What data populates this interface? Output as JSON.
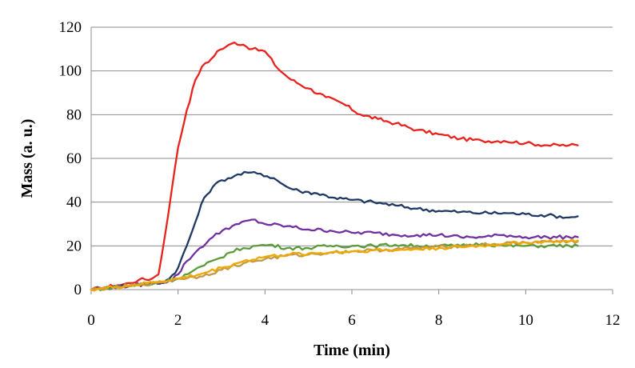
{
  "chart_data": {
    "type": "line",
    "title": "",
    "xlabel": "Time (min)",
    "ylabel": "Mass  (a. u.)",
    "xlim": [
      0,
      12
    ],
    "ylim": [
      0,
      120
    ],
    "xticks": [
      0,
      2,
      4,
      6,
      8,
      10,
      12
    ],
    "yticks": [
      0,
      20,
      40,
      60,
      80,
      100,
      120
    ],
    "grid": "horizontal",
    "legend": "none",
    "series": [
      {
        "color": "#e8221c",
        "points": [
          [
            0,
            0
          ],
          [
            0.3,
            1
          ],
          [
            0.6,
            2
          ],
          [
            0.9,
            3
          ],
          [
            1.1,
            4.5
          ],
          [
            1.4,
            5
          ],
          [
            1.55,
            7
          ],
          [
            1.7,
            25
          ],
          [
            1.85,
            45
          ],
          [
            2.0,
            65
          ],
          [
            2.2,
            82
          ],
          [
            2.4,
            96
          ],
          [
            2.55,
            102
          ],
          [
            2.7,
            104
          ],
          [
            2.9,
            109
          ],
          [
            3.1,
            111
          ],
          [
            3.3,
            113
          ],
          [
            3.5,
            112
          ],
          [
            3.7,
            110
          ],
          [
            4.0,
            109
          ],
          [
            4.3,
            101
          ],
          [
            4.6,
            96
          ],
          [
            5.0,
            92
          ],
          [
            5.4,
            88
          ],
          [
            5.8,
            85
          ],
          [
            6.2,
            80
          ],
          [
            6.6,
            78
          ],
          [
            7.0,
            76
          ],
          [
            7.5,
            73
          ],
          [
            8.0,
            71
          ],
          [
            8.5,
            69
          ],
          [
            9.0,
            68
          ],
          [
            9.5,
            68
          ],
          [
            10.0,
            67
          ],
          [
            10.5,
            66
          ],
          [
            11.0,
            66
          ],
          [
            11.2,
            66
          ]
        ]
      },
      {
        "color": "#1f3864",
        "points": [
          [
            0,
            0
          ],
          [
            0.4,
            1
          ],
          [
            0.8,
            2
          ],
          [
            1.2,
            2.5
          ],
          [
            1.6,
            3
          ],
          [
            1.8,
            5
          ],
          [
            2.0,
            10
          ],
          [
            2.2,
            20
          ],
          [
            2.4,
            31
          ],
          [
            2.6,
            42
          ],
          [
            2.8,
            47
          ],
          [
            3.0,
            50
          ],
          [
            3.3,
            52
          ],
          [
            3.6,
            53.5
          ],
          [
            3.9,
            53
          ],
          [
            4.2,
            51
          ],
          [
            4.5,
            47
          ],
          [
            4.8,
            45
          ],
          [
            5.2,
            44
          ],
          [
            5.6,
            42
          ],
          [
            6.0,
            41
          ],
          [
            6.5,
            40
          ],
          [
            7.0,
            38.5
          ],
          [
            7.5,
            37
          ],
          [
            8.0,
            36
          ],
          [
            8.5,
            35.5
          ],
          [
            9.0,
            35
          ],
          [
            9.5,
            35
          ],
          [
            10.0,
            34.5
          ],
          [
            10.5,
            34
          ],
          [
            11.0,
            33
          ],
          [
            11.2,
            33.5
          ]
        ]
      },
      {
        "color": "#7030a0",
        "points": [
          [
            0,
            0
          ],
          [
            0.5,
            1
          ],
          [
            1.0,
            2
          ],
          [
            1.5,
            3
          ],
          [
            1.8,
            4
          ],
          [
            2.0,
            7
          ],
          [
            2.2,
            13
          ],
          [
            2.5,
            19
          ],
          [
            2.8,
            24
          ],
          [
            3.1,
            28
          ],
          [
            3.4,
            30
          ],
          [
            3.7,
            32
          ],
          [
            4.0,
            30
          ],
          [
            4.5,
            29
          ],
          [
            5.0,
            27.5
          ],
          [
            5.5,
            27
          ],
          [
            6.0,
            26
          ],
          [
            6.5,
            26
          ],
          [
            7.0,
            25
          ],
          [
            7.5,
            25
          ],
          [
            8.0,
            25
          ],
          [
            8.5,
            24
          ],
          [
            9.0,
            24
          ],
          [
            9.5,
            25
          ],
          [
            10.0,
            24
          ],
          [
            10.5,
            24
          ],
          [
            11.0,
            24
          ],
          [
            11.2,
            24
          ]
        ]
      },
      {
        "color": "#5b9b3a",
        "points": [
          [
            0,
            0
          ],
          [
            0.5,
            1
          ],
          [
            1.0,
            2
          ],
          [
            1.5,
            3
          ],
          [
            2.0,
            5
          ],
          [
            2.3,
            8
          ],
          [
            2.6,
            11
          ],
          [
            2.9,
            14
          ],
          [
            3.2,
            17
          ],
          [
            3.5,
            19
          ],
          [
            3.8,
            20
          ],
          [
            4.1,
            20.5
          ],
          [
            4.5,
            19
          ],
          [
            5.0,
            19
          ],
          [
            5.5,
            20
          ],
          [
            6.0,
            20
          ],
          [
            6.5,
            20
          ],
          [
            7.0,
            20.5
          ],
          [
            7.5,
            20
          ],
          [
            8.0,
            20
          ],
          [
            8.5,
            20
          ],
          [
            9.0,
            21
          ],
          [
            9.5,
            20
          ],
          [
            10.0,
            20
          ],
          [
            10.5,
            20
          ],
          [
            11.0,
            20
          ],
          [
            11.2,
            20
          ]
        ]
      },
      {
        "color": "#c09a4a",
        "points": [
          [
            0,
            0
          ],
          [
            0.5,
            1
          ],
          [
            1.0,
            2
          ],
          [
            1.5,
            3
          ],
          [
            2.0,
            5
          ],
          [
            2.5,
            6
          ],
          [
            3.0,
            9
          ],
          [
            3.5,
            12
          ],
          [
            4.0,
            14
          ],
          [
            4.5,
            15.5
          ],
          [
            5.0,
            16
          ],
          [
            5.5,
            17
          ],
          [
            6.0,
            17.5
          ],
          [
            6.5,
            18
          ],
          [
            7.0,
            18.5
          ],
          [
            7.5,
            19
          ],
          [
            8.0,
            19.5
          ],
          [
            8.5,
            20
          ],
          [
            9.0,
            20.5
          ],
          [
            9.5,
            21
          ],
          [
            10.0,
            21.5
          ],
          [
            10.5,
            22
          ],
          [
            11.0,
            22
          ],
          [
            11.2,
            22
          ]
        ]
      },
      {
        "color": "#f0a800",
        "points": [
          [
            0,
            0
          ],
          [
            0.5,
            1
          ],
          [
            1.0,
            2
          ],
          [
            1.5,
            3.5
          ],
          [
            2.0,
            5
          ],
          [
            2.5,
            7
          ],
          [
            3.0,
            10
          ],
          [
            3.5,
            13
          ],
          [
            4.0,
            15
          ],
          [
            4.5,
            16
          ],
          [
            5.0,
            16.5
          ],
          [
            5.5,
            17
          ],
          [
            6.0,
            17.5
          ],
          [
            6.5,
            18
          ],
          [
            7.0,
            18
          ],
          [
            7.5,
            18.5
          ],
          [
            8.0,
            19
          ],
          [
            8.5,
            19.5
          ],
          [
            9.0,
            20
          ],
          [
            9.5,
            21
          ],
          [
            10.0,
            21.5
          ],
          [
            10.5,
            22
          ],
          [
            11.0,
            22
          ],
          [
            11.2,
            22.5
          ]
        ]
      }
    ]
  }
}
